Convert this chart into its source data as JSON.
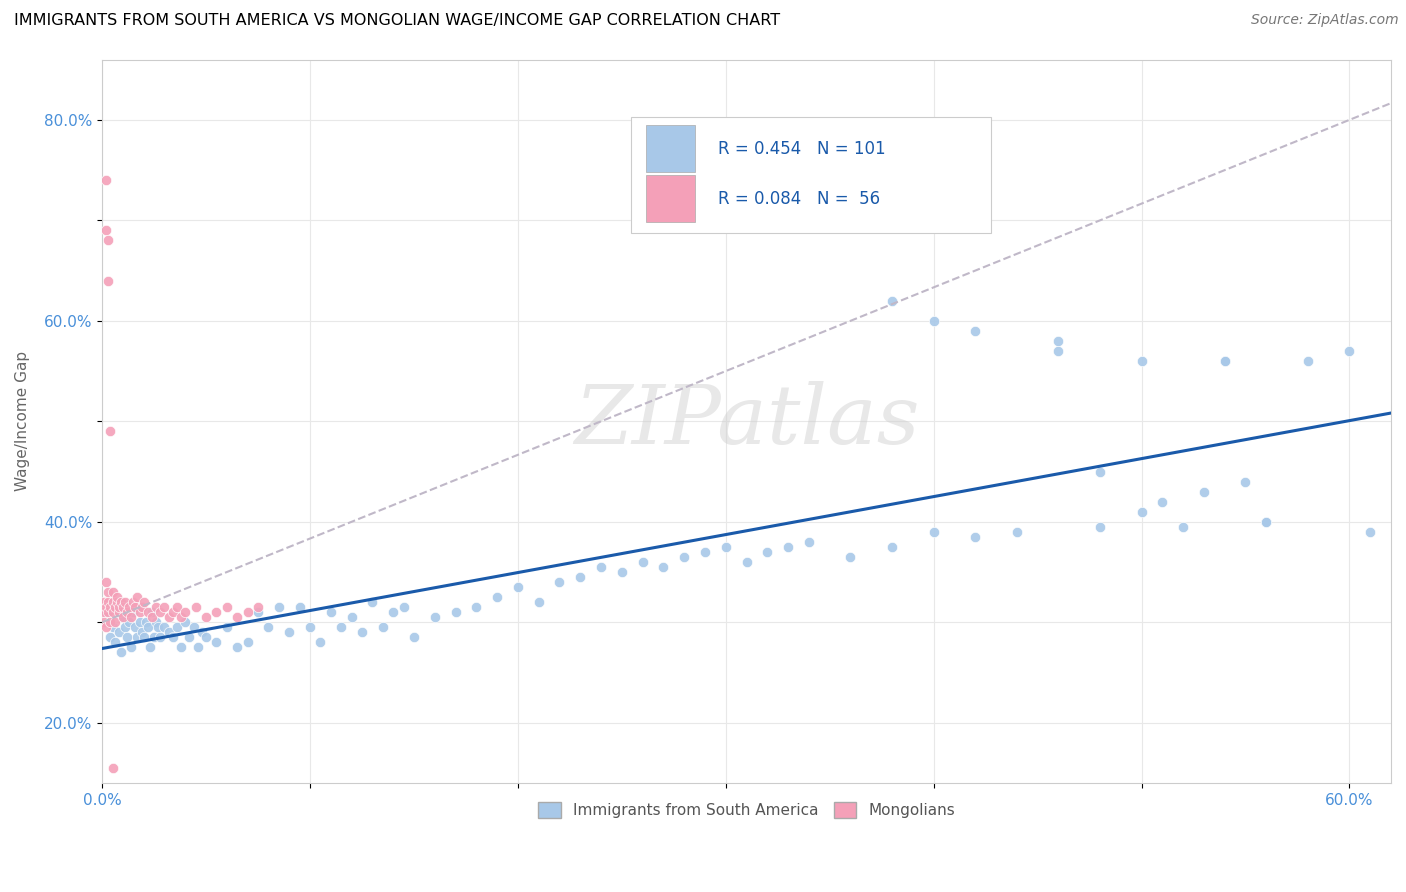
{
  "title": "IMMIGRANTS FROM SOUTH AMERICA VS MONGOLIAN WAGE/INCOME GAP CORRELATION CHART",
  "source_text": "Source: ZipAtlas.com",
  "ylabel": "Wage/Income Gap",
  "xlim": [
    0.0,
    0.62
  ],
  "ylim": [
    0.14,
    0.86
  ],
  "xtick_positions": [
    0.0,
    0.1,
    0.2,
    0.3,
    0.4,
    0.5,
    0.6
  ],
  "xticklabels": [
    "0.0%",
    "",
    "",
    "",
    "",
    "",
    "60.0%"
  ],
  "ytick_positions": [
    0.2,
    0.3,
    0.4,
    0.5,
    0.6,
    0.7,
    0.8
  ],
  "yticklabels": [
    "20.0%",
    "",
    "40.0%",
    "",
    "60.0%",
    "",
    "80.0%"
  ],
  "blue_color": "#a8c8e8",
  "pink_color": "#f4a0b8",
  "blue_line_color": "#1a5aaa",
  "gray_line_color": "#c0b8c8",
  "legend_r_blue": "0.454",
  "legend_n_blue": "101",
  "legend_r_pink": "0.084",
  "legend_n_pink": "56",
  "watermark": "ZIPatlas",
  "blue_x": [
    0.002,
    0.004,
    0.005,
    0.006,
    0.007,
    0.008,
    0.009,
    0.01,
    0.011,
    0.012,
    0.013,
    0.014,
    0.015,
    0.016,
    0.017,
    0.018,
    0.019,
    0.02,
    0.021,
    0.022,
    0.023,
    0.024,
    0.025,
    0.026,
    0.027,
    0.028,
    0.03,
    0.032,
    0.034,
    0.036,
    0.038,
    0.04,
    0.042,
    0.044,
    0.046,
    0.048,
    0.05,
    0.055,
    0.06,
    0.065,
    0.07,
    0.075,
    0.08,
    0.085,
    0.09,
    0.095,
    0.1,
    0.105,
    0.11,
    0.115,
    0.12,
    0.125,
    0.13,
    0.135,
    0.14,
    0.145,
    0.15,
    0.16,
    0.17,
    0.18,
    0.19,
    0.2,
    0.21,
    0.22,
    0.23,
    0.24,
    0.25,
    0.26,
    0.27,
    0.28,
    0.29,
    0.3,
    0.31,
    0.32,
    0.33,
    0.34,
    0.36,
    0.38,
    0.4,
    0.42,
    0.44,
    0.46,
    0.48,
    0.5,
    0.52,
    0.54,
    0.56,
    0.58,
    0.6,
    0.61,
    0.54,
    0.56,
    0.38,
    0.4,
    0.42,
    0.46,
    0.48,
    0.5,
    0.51,
    0.53,
    0.55
  ],
  "blue_y": [
    0.31,
    0.285,
    0.295,
    0.28,
    0.315,
    0.29,
    0.27,
    0.305,
    0.295,
    0.285,
    0.3,
    0.275,
    0.31,
    0.295,
    0.285,
    0.3,
    0.29,
    0.285,
    0.3,
    0.295,
    0.275,
    0.31,
    0.285,
    0.3,
    0.295,
    0.285,
    0.295,
    0.29,
    0.285,
    0.295,
    0.275,
    0.3,
    0.285,
    0.295,
    0.275,
    0.29,
    0.285,
    0.28,
    0.295,
    0.275,
    0.28,
    0.31,
    0.295,
    0.315,
    0.29,
    0.315,
    0.295,
    0.28,
    0.31,
    0.295,
    0.305,
    0.29,
    0.32,
    0.295,
    0.31,
    0.315,
    0.285,
    0.305,
    0.31,
    0.315,
    0.325,
    0.335,
    0.32,
    0.34,
    0.345,
    0.355,
    0.35,
    0.36,
    0.355,
    0.365,
    0.37,
    0.375,
    0.36,
    0.37,
    0.375,
    0.38,
    0.365,
    0.375,
    0.39,
    0.385,
    0.39,
    0.57,
    0.395,
    0.56,
    0.395,
    0.56,
    0.4,
    0.56,
    0.57,
    0.39,
    0.56,
    0.4,
    0.62,
    0.6,
    0.59,
    0.58,
    0.45,
    0.41,
    0.42,
    0.43,
    0.44
  ],
  "pink_x": [
    0.001,
    0.001,
    0.001,
    0.002,
    0.002,
    0.002,
    0.003,
    0.003,
    0.003,
    0.004,
    0.004,
    0.005,
    0.005,
    0.005,
    0.006,
    0.006,
    0.007,
    0.007,
    0.008,
    0.008,
    0.009,
    0.01,
    0.01,
    0.011,
    0.012,
    0.013,
    0.014,
    0.015,
    0.016,
    0.017,
    0.018,
    0.019,
    0.02,
    0.022,
    0.024,
    0.026,
    0.028,
    0.03,
    0.032,
    0.034,
    0.036,
    0.038,
    0.04,
    0.045,
    0.05,
    0.055,
    0.06,
    0.065,
    0.07,
    0.075,
    0.002,
    0.002,
    0.003,
    0.003,
    0.004,
    0.005
  ],
  "pink_y": [
    0.31,
    0.32,
    0.3,
    0.34,
    0.315,
    0.295,
    0.32,
    0.31,
    0.33,
    0.315,
    0.3,
    0.32,
    0.33,
    0.31,
    0.315,
    0.3,
    0.32,
    0.325,
    0.31,
    0.315,
    0.32,
    0.305,
    0.315,
    0.32,
    0.31,
    0.315,
    0.305,
    0.32,
    0.315,
    0.325,
    0.31,
    0.315,
    0.32,
    0.31,
    0.305,
    0.315,
    0.31,
    0.315,
    0.305,
    0.31,
    0.315,
    0.305,
    0.31,
    0.315,
    0.305,
    0.31,
    0.315,
    0.305,
    0.31,
    0.315,
    0.74,
    0.69,
    0.68,
    0.64,
    0.49,
    0.155
  ]
}
